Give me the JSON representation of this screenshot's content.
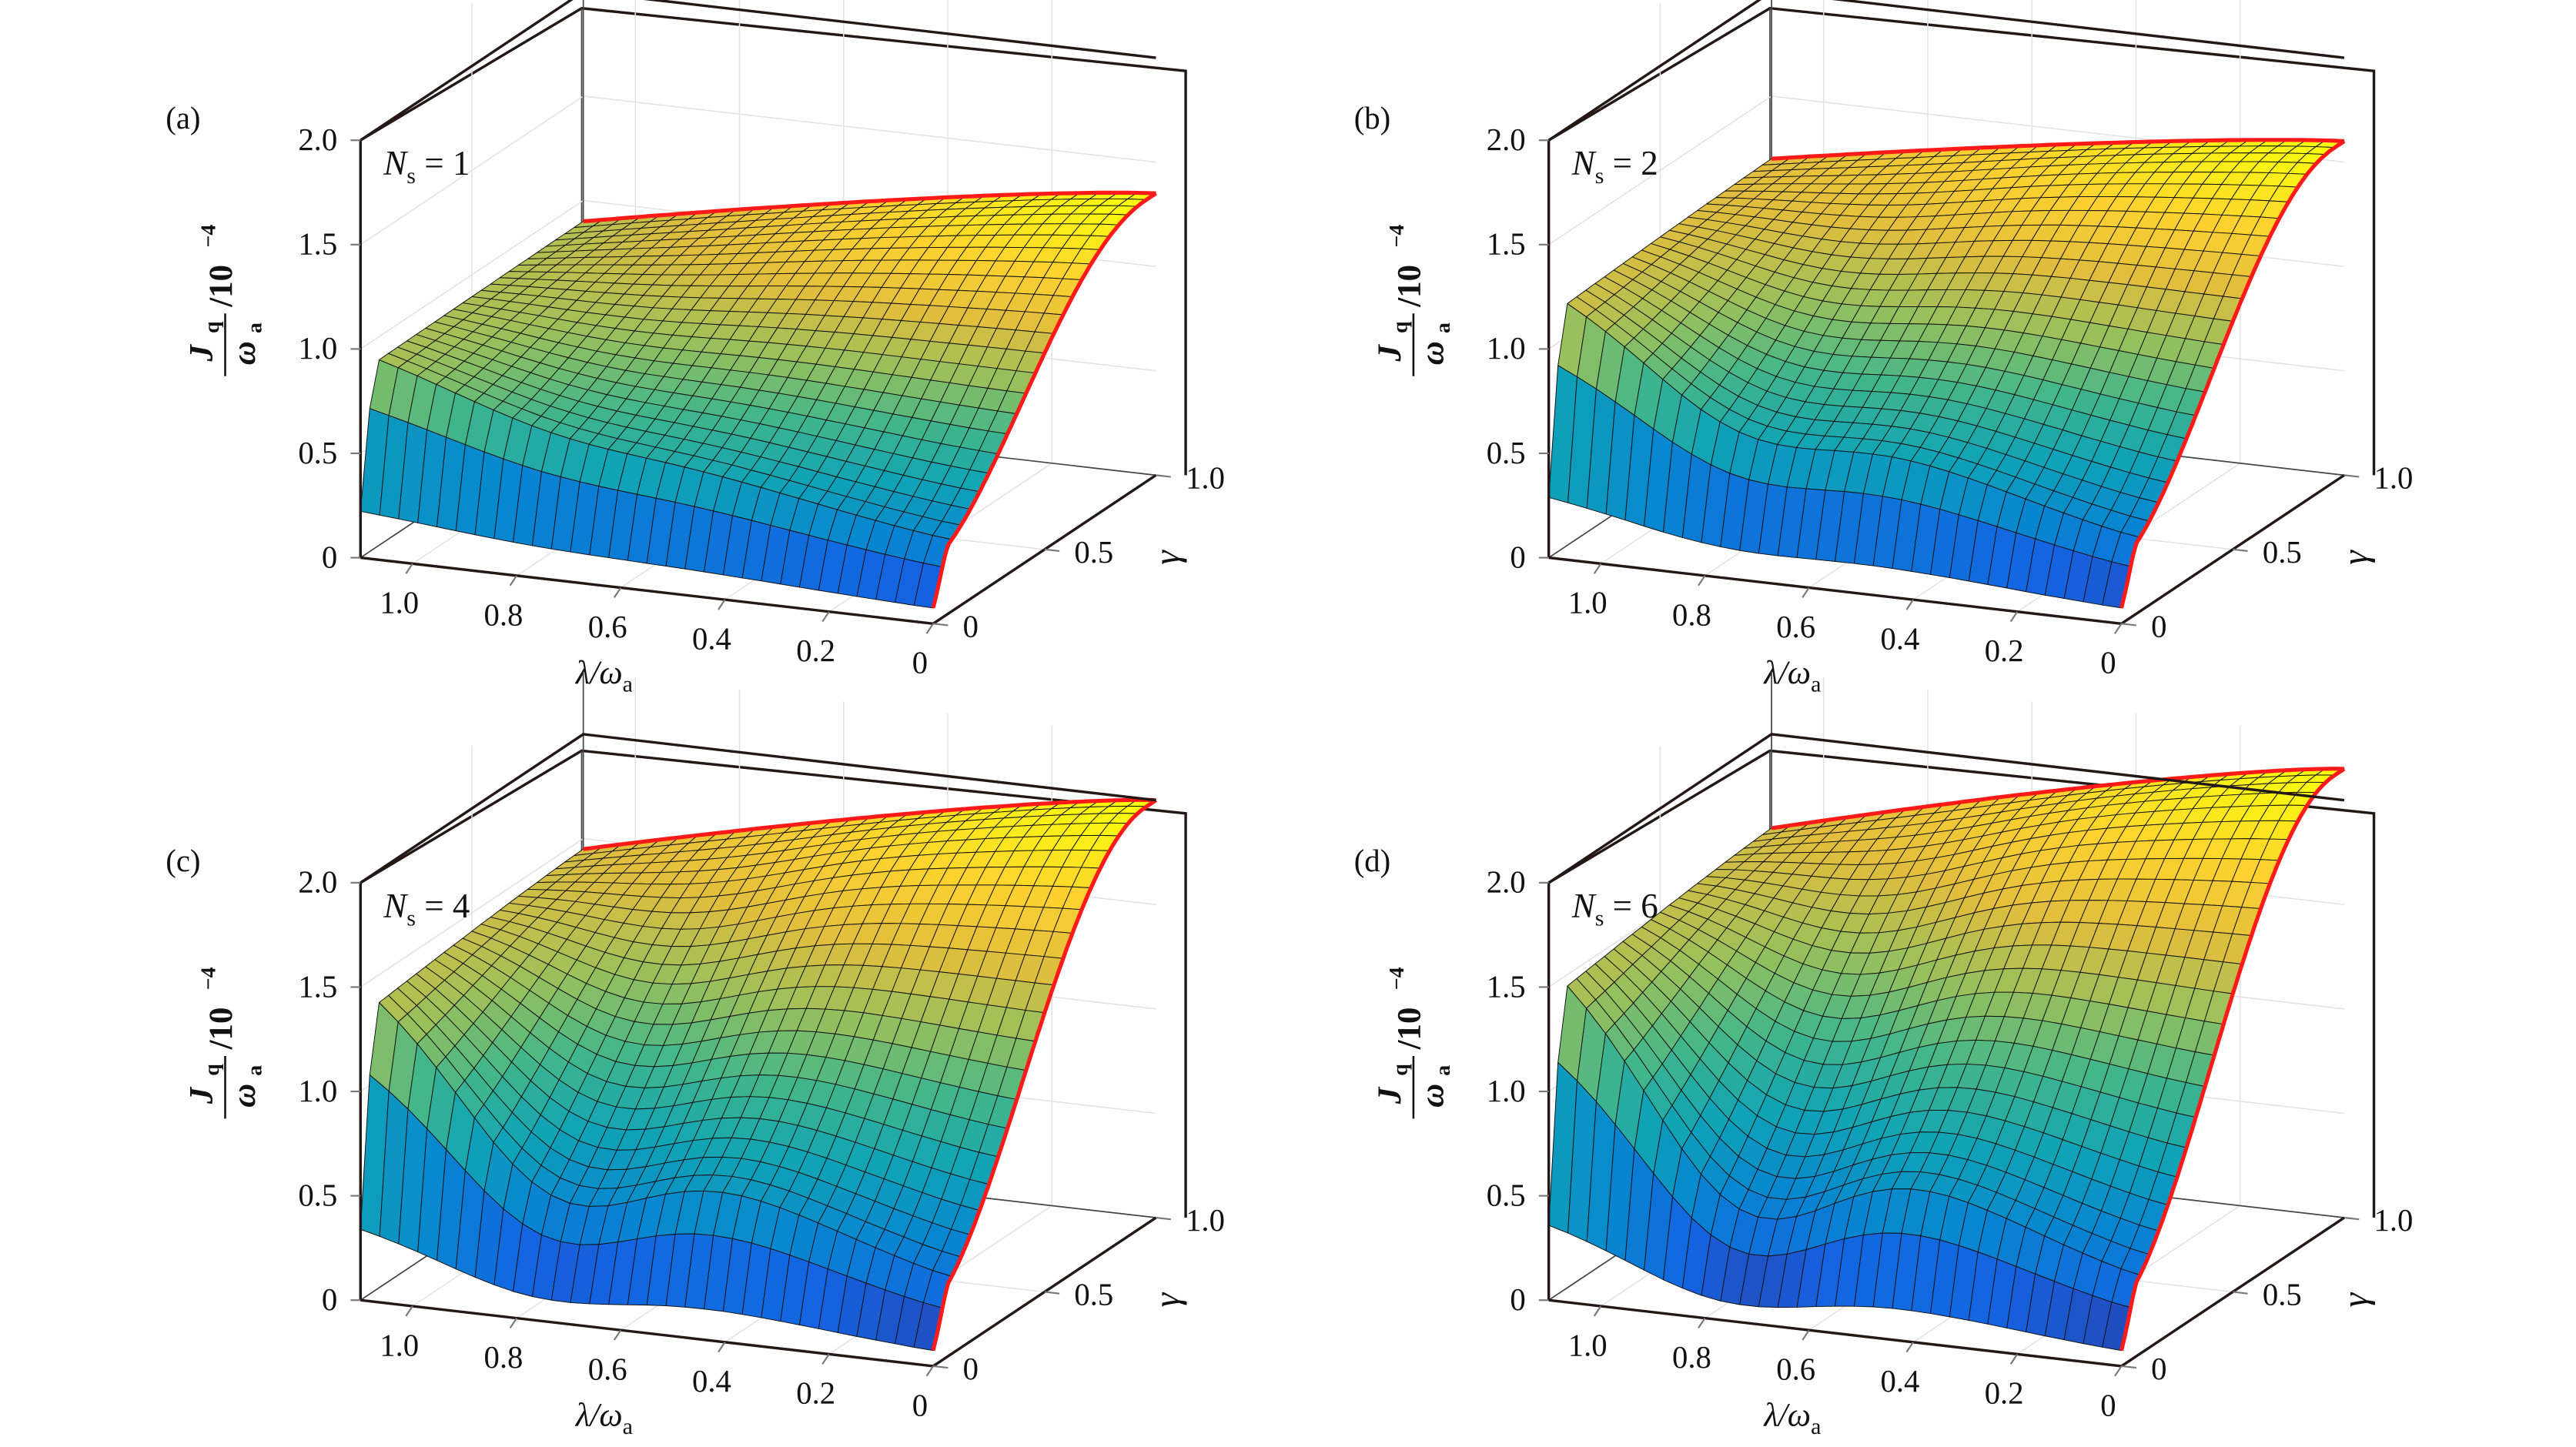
{
  "figure": {
    "panels": [
      "a",
      "b",
      "c",
      "d"
    ]
  },
  "chart_data": [
    {
      "type": "surface",
      "panel_label": "(a)",
      "annotation": "N_s = 1",
      "annotation_parts": {
        "symbol": "N",
        "subscript": "s",
        "rest": " = 1"
      },
      "xlabel": "λ/ω_a",
      "ylabel": "γ",
      "zlabel": "J_q/ω_a /10^-4",
      "x_ticks": [
        "1.0",
        "0.8",
        "0.6",
        "0.4",
        "0.2",
        "0"
      ],
      "y_ticks": [
        "0",
        "0.5",
        "1.0"
      ],
      "z_ticks": [
        "0",
        "0.5",
        "1.0",
        "1.5",
        "2.0"
      ],
      "xlim": [
        0,
        1.1
      ],
      "ylim": [
        0,
        1
      ],
      "zlim": [
        0,
        2
      ],
      "ridge_peak": 1.35,
      "ridge_gamma": 0.55,
      "lambda_far_value": 0.9,
      "dip_min": 0.82,
      "edge_gamma0": 0.3,
      "colormap": "parula",
      "highlight_color": "#ff1a1a"
    },
    {
      "type": "surface",
      "panel_label": "(b)",
      "annotation": "N_s = 2",
      "annotation_parts": {
        "symbol": "N",
        "subscript": "s",
        "rest": " = 2"
      },
      "xlabel": "λ/ω_a",
      "ylabel": "γ",
      "zlabel": "J_q/ω_a /10^-4",
      "x_ticks": [
        "1.0",
        "0.8",
        "0.6",
        "0.4",
        "0.2",
        "0"
      ],
      "y_ticks": [
        "0",
        "0.5",
        "1.0"
      ],
      "z_ticks": [
        "0",
        "0.5",
        "1.0",
        "1.5",
        "2.0"
      ],
      "xlim": [
        0,
        1.1
      ],
      "ylim": [
        0,
        1
      ],
      "zlim": [
        0,
        2
      ],
      "ridge_peak": 1.6,
      "ridge_gamma": 0.55,
      "lambda_far_value": 1.2,
      "dip_min": 0.9,
      "edge_gamma0": 0.3,
      "colormap": "parula",
      "highlight_color": "#ff1a1a"
    },
    {
      "type": "surface",
      "panel_label": "(c)",
      "annotation": "N_s = 4",
      "annotation_parts": {
        "symbol": "N",
        "subscript": "s",
        "rest": " = 4"
      },
      "xlabel": "λ/ω_a",
      "ylabel": "γ",
      "zlabel": "J_q/ω_a /10^-4",
      "x_ticks": [
        "1.0",
        "0.8",
        "0.6",
        "0.4",
        "0.2",
        "0"
      ],
      "y_ticks": [
        "0",
        "0.5",
        "1.0"
      ],
      "z_ticks": [
        "0",
        "0.5",
        "1.0",
        "1.5",
        "2.0"
      ],
      "xlim": [
        0,
        1.1
      ],
      "ylim": [
        0,
        1
      ],
      "zlim": [
        0,
        2
      ],
      "ridge_peak": 2.0,
      "ridge_gamma": 0.55,
      "lambda_far_value": 1.45,
      "dip_min": 0.85,
      "edge_gamma0": 0.3,
      "colormap": "parula",
      "highlight_color": "#ff1a1a"
    },
    {
      "type": "surface",
      "panel_label": "(d)",
      "annotation": "N_s = 6",
      "annotation_parts": {
        "symbol": "N",
        "subscript": "s",
        "rest": " = 6"
      },
      "xlabel": "λ/ω_a",
      "ylabel": "γ",
      "zlabel": "J_q/ω_a /10^-4",
      "x_ticks": [
        "1.0",
        "0.8",
        "0.6",
        "0.4",
        "0.2",
        "0"
      ],
      "y_ticks": [
        "0",
        "0.5",
        "1.0"
      ],
      "z_ticks": [
        "0",
        "0.5",
        "1.0",
        "1.5",
        "2.0"
      ],
      "xlim": [
        0,
        1.1
      ],
      "ylim": [
        0,
        1
      ],
      "zlim": [
        0,
        2
      ],
      "ridge_peak": 2.15,
      "ridge_gamma": 0.55,
      "lambda_far_value": 1.55,
      "dip_min": 0.8,
      "edge_gamma0": 0.3,
      "colormap": "parula",
      "highlight_color": "#ff1a1a"
    }
  ]
}
